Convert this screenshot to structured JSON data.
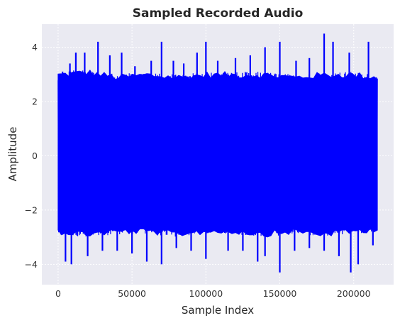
{
  "chart_data": {
    "type": "line",
    "title": "Sampled Recorded Audio",
    "xlabel": "Sample Index",
    "ylabel": "Amplitude",
    "xlim": [
      -11000,
      227000
    ],
    "ylim": [
      -4.75,
      4.85
    ],
    "xticks": [
      0,
      50000,
      100000,
      150000,
      200000
    ],
    "xtick_labels": [
      "0",
      "50000",
      "100000",
      "150000",
      "200000"
    ],
    "yticks": [
      -4,
      -2,
      0,
      2,
      4
    ],
    "ytick_labels": [
      "−4",
      "−2",
      "0",
      "2",
      "4"
    ],
    "grid": true,
    "series": [
      {
        "color": "#0000ff",
        "n_samples": 216000,
        "x_range": [
          0,
          216000
        ],
        "envelope": {
          "x": [
            0,
            20000,
            40000,
            60000,
            80000,
            100000,
            120000,
            140000,
            160000,
            180000,
            200000,
            216000
          ],
          "upper": [
            3.1,
            3.2,
            3.0,
            3.1,
            3.0,
            3.1,
            3.1,
            3.1,
            3.0,
            3.1,
            3.1,
            3.0
          ],
          "lower": [
            -2.9,
            -3.0,
            -2.9,
            -2.9,
            -3.0,
            -2.9,
            -2.9,
            -3.0,
            -2.9,
            -3.0,
            -2.9,
            -2.8
          ]
        },
        "peaks": [
          {
            "x": 3000,
            "y": 3.1
          },
          {
            "x": 8000,
            "y": 3.4
          },
          {
            "x": 12000,
            "y": 3.8
          },
          {
            "x": 18000,
            "y": 3.8
          },
          {
            "x": 27000,
            "y": 4.2
          },
          {
            "x": 35000,
            "y": 3.7
          },
          {
            "x": 43000,
            "y": 3.8
          },
          {
            "x": 52000,
            "y": 3.3
          },
          {
            "x": 63000,
            "y": 3.5
          },
          {
            "x": 70000,
            "y": 4.2
          },
          {
            "x": 78000,
            "y": 3.5
          },
          {
            "x": 85000,
            "y": 3.4
          },
          {
            "x": 94000,
            "y": 3.8
          },
          {
            "x": 100000,
            "y": 4.2
          },
          {
            "x": 108000,
            "y": 3.5
          },
          {
            "x": 120000,
            "y": 3.6
          },
          {
            "x": 130000,
            "y": 3.7
          },
          {
            "x": 140000,
            "y": 4.0
          },
          {
            "x": 150000,
            "y": 4.2
          },
          {
            "x": 161000,
            "y": 3.5
          },
          {
            "x": 170000,
            "y": 3.6
          },
          {
            "x": 180000,
            "y": 4.5
          },
          {
            "x": 186000,
            "y": 4.2
          },
          {
            "x": 197000,
            "y": 3.8
          },
          {
            "x": 210000,
            "y": 4.2
          }
        ],
        "troughs": [
          {
            "x": 2000,
            "y": -2.9
          },
          {
            "x": 5000,
            "y": -3.9
          },
          {
            "x": 9000,
            "y": -4.0
          },
          {
            "x": 20000,
            "y": -3.7
          },
          {
            "x": 30000,
            "y": -3.5
          },
          {
            "x": 40000,
            "y": -3.5
          },
          {
            "x": 50000,
            "y": -3.6
          },
          {
            "x": 60000,
            "y": -3.9
          },
          {
            "x": 70000,
            "y": -4.0
          },
          {
            "x": 80000,
            "y": -3.4
          },
          {
            "x": 90000,
            "y": -3.5
          },
          {
            "x": 100000,
            "y": -3.8
          },
          {
            "x": 115000,
            "y": -3.5
          },
          {
            "x": 125000,
            "y": -3.5
          },
          {
            "x": 135000,
            "y": -3.9
          },
          {
            "x": 140000,
            "y": -3.7
          },
          {
            "x": 150000,
            "y": -4.3
          },
          {
            "x": 160000,
            "y": -3.5
          },
          {
            "x": 170000,
            "y": -3.4
          },
          {
            "x": 180000,
            "y": -3.5
          },
          {
            "x": 190000,
            "y": -3.7
          },
          {
            "x": 198000,
            "y": -4.3
          },
          {
            "x": 203000,
            "y": -4.0
          },
          {
            "x": 213000,
            "y": -3.3
          }
        ]
      }
    ]
  }
}
